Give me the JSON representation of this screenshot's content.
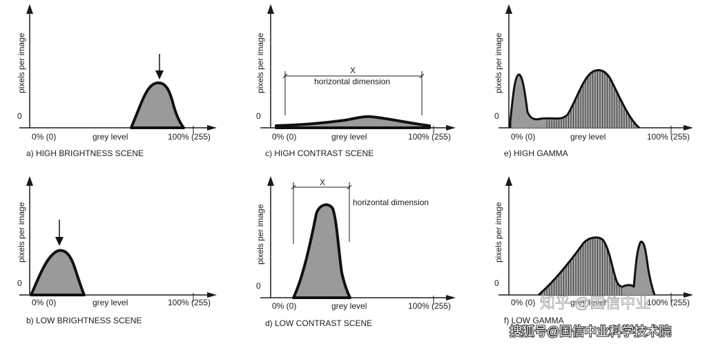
{
  "chart_data": [
    {
      "type": "area",
      "panel": "a",
      "caption": "a) HIGH BRIGHTNESS SCENE",
      "ylabel": "pixels per image",
      "y_zero_label": "0",
      "x_start_label": "0% (0)",
      "xlabel": "grey level",
      "x_end_label": "100% (255)",
      "xlim": [
        0,
        255
      ],
      "curve": "single peak near the bright end",
      "annotation": "arrow marking the peak"
    },
    {
      "type": "area",
      "panel": "c",
      "caption": "c) HIGH CONTRAST SCENE",
      "ylabel": "pixels per image",
      "y_zero_label": "0",
      "x_start_label": "0% (0)",
      "xlabel": "grey level",
      "x_end_label": "100% (255)",
      "xlim": [
        0,
        255
      ],
      "dimension_letter": "X",
      "dimension_label": "horizontal dimension",
      "curve": "low, wide spread across the full range"
    },
    {
      "type": "area",
      "panel": "e",
      "caption": "e) HIGH GAMMA",
      "ylabel": "pixels per image",
      "y_zero_label": "0",
      "x_start_label": "0% (0)",
      "xlabel": "grey level",
      "x_end_label": "100% (255)",
      "xlim": [
        0,
        255
      ],
      "curve": "narrow peak at dark end, broad hatched peak in upper mid-range"
    },
    {
      "type": "area",
      "panel": "b",
      "caption": "b) LOW BRIGHTNESS SCENE",
      "ylabel": "pixels per image",
      "y_zero_label": "0",
      "x_start_label": "0% (0)",
      "xlabel": "grey level",
      "x_end_label": "100% (255)",
      "xlim": [
        0,
        255
      ],
      "curve": "single peak near the dark end",
      "annotation": "arrow marking the peak"
    },
    {
      "type": "area",
      "panel": "d",
      "caption": "d) LOW CONTRAST SCENE",
      "ylabel": "pixels per image",
      "y_zero_label": "0",
      "x_start_label": "0% (0)",
      "xlabel": "grey level",
      "x_end_label": "100% (255)",
      "xlim": [
        0,
        255
      ],
      "dimension_letter": "X",
      "dimension_label": "horizontal dimension",
      "curve": "tall narrow peak in the dark-to-mid range"
    },
    {
      "type": "area",
      "panel": "f",
      "caption": "f) LOW GAMMA",
      "ylabel": "pixels per image",
      "y_zero_label": "0",
      "x_start_label": "0% (0)",
      "xlabel": "grey level",
      "x_end_label": "100% (255)",
      "xlim": [
        0,
        255
      ],
      "curve": "broad hatched peak in mid range, narrow peak near bright end"
    }
  ],
  "watermark": {
    "top_text": "知乎 @国信中业",
    "bottom_text": "搜狐号@国信中业科学技术院"
  },
  "colors": {
    "fill": "#9a9a9a",
    "stroke": "#111111",
    "axis": "#1a1a1a"
  }
}
